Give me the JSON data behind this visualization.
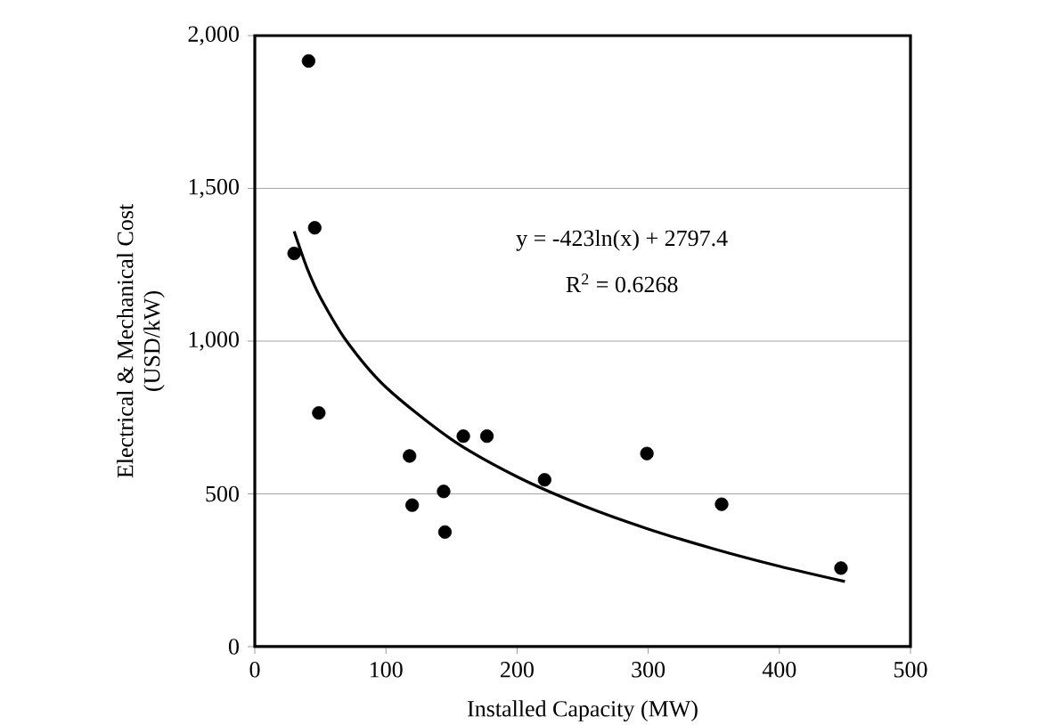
{
  "chart_data": {
    "type": "scatter",
    "xlabel": "Installed Capacity (MW)",
    "ylabel": "Electrical & Mechanical Cost\n(USD/kW)",
    "series": [
      {
        "color": "#000000",
        "marker": "circle",
        "x": [
          41,
          30,
          45.7,
          48.8,
          118,
          120,
          144,
          145,
          159,
          177,
          221,
          299,
          356,
          447
        ],
        "values": [
          1917,
          1287,
          1371,
          765,
          624,
          463,
          508,
          375,
          689,
          689,
          546,
          632,
          466,
          257
        ]
      },
      {
        "type": "line",
        "color": "#000000",
        "marker": "none",
        "x": [
          30,
          40,
          50,
          70,
          100,
          150,
          200,
          250,
          300,
          350,
          400,
          450
        ],
        "values": [
          1359,
          1237,
          1143,
          1000,
          849,
          678,
          556,
          462,
          385,
          320,
          263,
          213
        ]
      }
    ],
    "annotations": [
      "y = -423ln(x) + 2797.4",
      "R$^{2}$ = 0.6268"
    ],
    "xlim": [
      0,
      500
    ],
    "xticks": [
      0,
      100,
      200,
      300,
      400,
      500
    ],
    "ylim": [
      0,
      2000
    ],
    "yticks": [
      0,
      {
        "value": 500,
        "label": "500"
      },
      {
        "value": 1000,
        "label": "1,000"
      },
      {
        "value": 1500,
        "label": "1,500"
      },
      {
        "value": 2000,
        "label": "2,000"
      }
    ],
    "grid": "y"
  }
}
